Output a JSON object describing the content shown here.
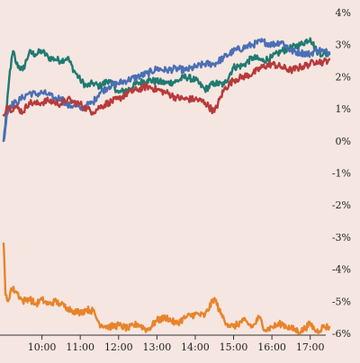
{
  "background_color": "#f5e6e1",
  "chart_data": {
    "type": "line",
    "title": "",
    "xlabel": "",
    "ylabel": "",
    "x_ticks": [
      "10:00",
      "11:00",
      "12:00",
      "13:00",
      "14:00",
      "15:00",
      "16:00",
      "17:00"
    ],
    "y_ticks": [
      "4%",
      "3%",
      "2%",
      "1%",
      "0%",
      "-1%",
      "-2%",
      "-3%",
      "-4%",
      "-5%",
      "-6%"
    ],
    "x_range": [
      "09:00",
      "17:30"
    ],
    "ylim": [
      -6,
      4
    ],
    "y_axis_position": "right",
    "grid": false,
    "legend": "none",
    "series": [
      {
        "color": "#1f7a70",
        "points": [
          [
            "09:00",
            0.0
          ],
          [
            "09:05",
            1.0
          ],
          [
            "09:10",
            2.2
          ],
          [
            "09:15",
            2.8
          ],
          [
            "09:20",
            2.4
          ],
          [
            "09:30",
            2.2
          ],
          [
            "09:40",
            2.75
          ],
          [
            "09:50",
            2.7
          ],
          [
            "10:00",
            2.8
          ],
          [
            "10:10",
            2.6
          ],
          [
            "10:20",
            2.55
          ],
          [
            "10:30",
            2.5
          ],
          [
            "10:40",
            2.6
          ],
          [
            "10:50",
            2.2
          ],
          [
            "11:00",
            1.9
          ],
          [
            "11:10",
            1.7
          ],
          [
            "11:20",
            1.8
          ],
          [
            "11:30",
            1.7
          ],
          [
            "11:45",
            1.9
          ],
          [
            "12:00",
            1.5
          ],
          [
            "12:15",
            1.6
          ],
          [
            "12:30",
            1.8
          ],
          [
            "12:45",
            1.9
          ],
          [
            "13:00",
            1.85
          ],
          [
            "13:15",
            1.8
          ],
          [
            "13:30",
            1.85
          ],
          [
            "13:45",
            2.0
          ],
          [
            "14:00",
            1.9
          ],
          [
            "14:15",
            1.6
          ],
          [
            "14:30",
            1.8
          ],
          [
            "14:45",
            1.75
          ],
          [
            "15:00",
            2.3
          ],
          [
            "15:15",
            2.35
          ],
          [
            "15:30",
            2.6
          ],
          [
            "15:45",
            2.5
          ],
          [
            "16:00",
            2.6
          ],
          [
            "16:15",
            2.8
          ],
          [
            "16:30",
            2.9
          ],
          [
            "16:45",
            3.0
          ],
          [
            "17:00",
            3.2
          ],
          [
            "17:10",
            2.8
          ],
          [
            "17:20",
            2.7
          ],
          [
            "17:30",
            2.7
          ]
        ]
      },
      {
        "color": "#4a6fb5",
        "points": [
          [
            "09:00",
            0.0
          ],
          [
            "09:05",
            0.8
          ],
          [
            "09:10",
            1.1
          ],
          [
            "09:20",
            1.2
          ],
          [
            "09:30",
            1.35
          ],
          [
            "09:40",
            1.5
          ],
          [
            "09:50",
            1.45
          ],
          [
            "10:00",
            1.5
          ],
          [
            "10:10",
            1.45
          ],
          [
            "10:20",
            1.3
          ],
          [
            "10:30",
            1.35
          ],
          [
            "10:40",
            1.1
          ],
          [
            "10:50",
            1.1
          ],
          [
            "11:00",
            1.0
          ],
          [
            "11:10",
            1.1
          ],
          [
            "11:20",
            1.2
          ],
          [
            "11:30",
            1.5
          ],
          [
            "11:45",
            1.7
          ],
          [
            "12:00",
            1.8
          ],
          [
            "12:15",
            1.9
          ],
          [
            "12:30",
            2.0
          ],
          [
            "12:45",
            2.1
          ],
          [
            "13:00",
            2.25
          ],
          [
            "13:15",
            2.2
          ],
          [
            "13:30",
            2.25
          ],
          [
            "13:45",
            2.2
          ],
          [
            "14:00",
            2.3
          ],
          [
            "14:15",
            2.4
          ],
          [
            "14:30",
            2.4
          ],
          [
            "14:45",
            2.6
          ],
          [
            "15:00",
            2.8
          ],
          [
            "15:15",
            2.9
          ],
          [
            "15:30",
            3.0
          ],
          [
            "15:45",
            3.1
          ],
          [
            "16:00",
            3.0
          ],
          [
            "16:15",
            3.1
          ],
          [
            "16:30",
            2.8
          ],
          [
            "16:45",
            2.75
          ],
          [
            "17:00",
            2.7
          ],
          [
            "17:10",
            2.85
          ],
          [
            "17:20",
            2.8
          ],
          [
            "17:30",
            2.75
          ]
        ]
      },
      {
        "color": "#b83a3a",
        "points": [
          [
            "09:00",
            0.8
          ],
          [
            "09:05",
            1.1
          ],
          [
            "09:10",
            1.0
          ],
          [
            "09:20",
            1.05
          ],
          [
            "09:30",
            0.9
          ],
          [
            "09:40",
            1.2
          ],
          [
            "09:50",
            1.15
          ],
          [
            "10:00",
            1.2
          ],
          [
            "10:10",
            1.25
          ],
          [
            "10:20",
            1.2
          ],
          [
            "10:30",
            1.15
          ],
          [
            "10:40",
            1.3
          ],
          [
            "10:50",
            1.2
          ],
          [
            "11:00",
            1.15
          ],
          [
            "11:10",
            1.0
          ],
          [
            "11:20",
            0.9
          ],
          [
            "11:30",
            1.05
          ],
          [
            "11:45",
            1.2
          ],
          [
            "12:00",
            1.3
          ],
          [
            "12:15",
            1.5
          ],
          [
            "12:30",
            1.6
          ],
          [
            "12:45",
            1.7
          ],
          [
            "13:00",
            1.6
          ],
          [
            "13:15",
            1.5
          ],
          [
            "13:30",
            1.35
          ],
          [
            "13:45",
            1.3
          ],
          [
            "14:00",
            1.3
          ],
          [
            "14:15",
            1.2
          ],
          [
            "14:30",
            0.9
          ],
          [
            "14:45",
            1.6
          ],
          [
            "15:00",
            1.9
          ],
          [
            "15:15",
            2.0
          ],
          [
            "15:30",
            2.1
          ],
          [
            "15:45",
            2.3
          ],
          [
            "16:00",
            2.4
          ],
          [
            "16:15",
            2.3
          ],
          [
            "16:30",
            2.2
          ],
          [
            "16:45",
            2.3
          ],
          [
            "17:00",
            2.4
          ],
          [
            "17:10",
            2.5
          ],
          [
            "17:20",
            2.45
          ],
          [
            "17:30",
            2.55
          ]
        ]
      },
      {
        "color": "#e8832a",
        "points": [
          [
            "09:00",
            -3.2
          ],
          [
            "09:03",
            -4.8
          ],
          [
            "09:07",
            -5.0
          ],
          [
            "09:12",
            -4.6
          ],
          [
            "09:20",
            -4.7
          ],
          [
            "09:30",
            -5.0
          ],
          [
            "09:40",
            -4.9
          ],
          [
            "09:50",
            -5.1
          ],
          [
            "10:00",
            -4.95
          ],
          [
            "10:10",
            -5.1
          ],
          [
            "10:20",
            -5.0
          ],
          [
            "10:30",
            -5.1
          ],
          [
            "10:40",
            -5.2
          ],
          [
            "10:50",
            -5.3
          ],
          [
            "11:00",
            -5.35
          ],
          [
            "11:10",
            -5.25
          ],
          [
            "11:20",
            -5.3
          ],
          [
            "11:30",
            -5.7
          ],
          [
            "11:45",
            -5.8
          ],
          [
            "12:00",
            -5.75
          ],
          [
            "12:15",
            -5.85
          ],
          [
            "12:30",
            -5.7
          ],
          [
            "12:45",
            -5.9
          ],
          [
            "13:00",
            -5.6
          ],
          [
            "13:15",
            -5.5
          ],
          [
            "13:30",
            -5.7
          ],
          [
            "13:45",
            -5.5
          ],
          [
            "14:00",
            -5.4
          ],
          [
            "14:15",
            -5.45
          ],
          [
            "14:30",
            -4.9
          ],
          [
            "14:40",
            -5.4
          ],
          [
            "14:50",
            -5.7
          ],
          [
            "15:00",
            -5.8
          ],
          [
            "15:15",
            -5.6
          ],
          [
            "15:30",
            -5.8
          ],
          [
            "15:40",
            -5.5
          ],
          [
            "15:50",
            -5.9
          ],
          [
            "16:00",
            -5.8
          ],
          [
            "16:15",
            -5.7
          ],
          [
            "16:30",
            -5.85
          ],
          [
            "16:45",
            -5.95
          ],
          [
            "17:00",
            -5.7
          ],
          [
            "17:10",
            -5.95
          ],
          [
            "17:20",
            -5.8
          ],
          [
            "17:30",
            -5.8
          ]
        ]
      }
    ]
  }
}
